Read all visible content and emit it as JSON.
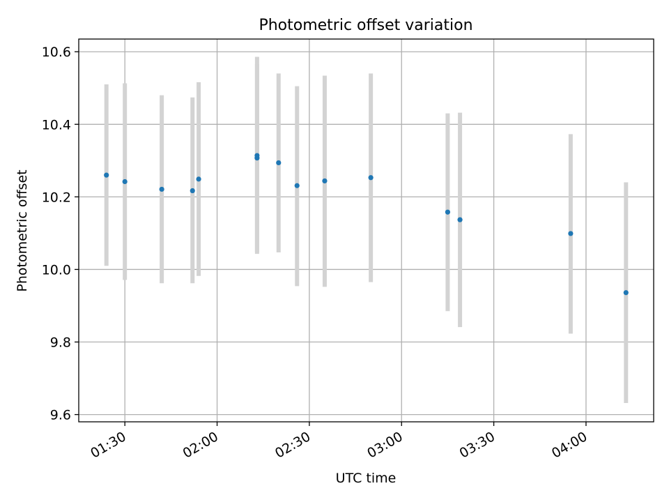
{
  "chart_data": {
    "type": "scatter",
    "title": "Photometric offset variation",
    "xlabel": "UTC time",
    "ylabel": "Photometric offset",
    "x_axis_type": "time",
    "xlim": [
      "01:15",
      "04:22"
    ],
    "ylim": [
      9.58,
      10.635
    ],
    "x_ticks": [
      "01:30",
      "02:00",
      "02:30",
      "03:00",
      "03:30",
      "04:00"
    ],
    "y_ticks": [
      "9.6",
      "9.8",
      "10.0",
      "10.2",
      "10.4",
      "10.6"
    ],
    "grid": true,
    "legend": "none",
    "colors": {
      "points": "#1f77b4",
      "error_bars": "#d3d3d3",
      "grid": "#b0b0b0"
    },
    "points": [
      {
        "x": "01:24",
        "y": 10.26,
        "y_low": 10.01,
        "y_high": 10.51
      },
      {
        "x": "01:30",
        "y": 10.242,
        "y_low": 9.971,
        "y_high": 10.513
      },
      {
        "x": "01:42",
        "y": 10.221,
        "y_low": 9.962,
        "y_high": 10.48
      },
      {
        "x": "01:52",
        "y": 10.217,
        "y_low": 9.962,
        "y_high": 10.474
      },
      {
        "x": "01:54",
        "y": 10.249,
        "y_low": 9.982,
        "y_high": 10.516
      },
      {
        "x": "02:13",
        "y": 10.307,
        "y_low": 10.049,
        "y_high": 10.566
      },
      {
        "x": "02:13",
        "y": 10.314,
        "y_low": 10.043,
        "y_high": 10.586
      },
      {
        "x": "02:20",
        "y": 10.294,
        "y_low": 10.047,
        "y_high": 10.54
      },
      {
        "x": "02:26",
        "y": 10.231,
        "y_low": 9.954,
        "y_high": 10.505
      },
      {
        "x": "02:35",
        "y": 10.244,
        "y_low": 9.952,
        "y_high": 10.534
      },
      {
        "x": "02:50",
        "y": 10.253,
        "y_low": 9.965,
        "y_high": 10.54
      },
      {
        "x": "03:15",
        "y": 10.158,
        "y_low": 9.885,
        "y_high": 10.43
      },
      {
        "x": "03:19",
        "y": 10.137,
        "y_low": 9.841,
        "y_high": 10.432
      },
      {
        "x": "03:55",
        "y": 10.099,
        "y_low": 9.823,
        "y_high": 10.373
      },
      {
        "x": "04:13",
        "y": 9.936,
        "y_low": 9.632,
        "y_high": 10.24
      }
    ]
  }
}
